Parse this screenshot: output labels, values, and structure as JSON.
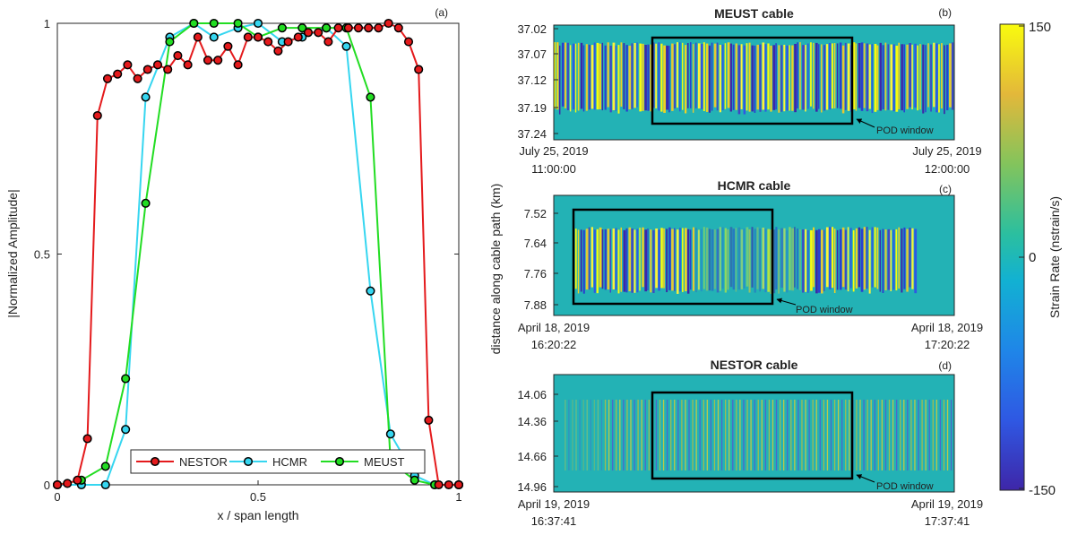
{
  "chart_data": [
    {
      "type": "line",
      "panel_label": "(a)",
      "xlabel": "x / span length",
      "ylabel": "|Normalized Amplitude|",
      "xlim": [
        0,
        1
      ],
      "ylim": [
        0,
        1
      ],
      "xticks": [
        "0",
        "0.5",
        "1"
      ],
      "yticks": [
        "0",
        "0.5",
        "1"
      ],
      "legend": "bottom-center",
      "series": [
        {
          "name": "NESTOR",
          "color": "#e41a1c",
          "x": [
            0,
            0.025,
            0.05,
            0.075,
            0.1,
            0.125,
            0.15,
            0.175,
            0.2,
            0.225,
            0.25,
            0.275,
            0.3,
            0.325,
            0.35,
            0.375,
            0.4,
            0.425,
            0.45,
            0.475,
            0.5,
            0.525,
            0.55,
            0.575,
            0.6,
            0.625,
            0.65,
            0.675,
            0.7,
            0.725,
            0.75,
            0.775,
            0.8,
            0.825,
            0.85,
            0.875,
            0.9,
            0.925,
            0.95,
            0.975,
            1
          ],
          "y": [
            0,
            0.003,
            0.01,
            0.1,
            0.8,
            0.88,
            0.89,
            0.91,
            0.88,
            0.9,
            0.91,
            0.9,
            0.93,
            0.91,
            0.97,
            0.92,
            0.92,
            0.95,
            0.91,
            0.97,
            0.97,
            0.96,
            0.94,
            0.96,
            0.97,
            0.98,
            0.98,
            0.96,
            0.99,
            0.99,
            0.99,
            0.99,
            0.99,
            1.0,
            0.99,
            0.96,
            0.9,
            0.14,
            0.0,
            0.0,
            0.0
          ]
        },
        {
          "name": "HCMR",
          "color": "#36d6f0",
          "x": [
            0,
            0.06,
            0.12,
            0.17,
            0.22,
            0.28,
            0.34,
            0.39,
            0.45,
            0.5,
            0.56,
            0.61,
            0.67,
            0.72,
            0.78,
            0.83,
            0.89,
            0.94,
            1
          ],
          "y": [
            0,
            0.0,
            0.0,
            0.12,
            0.84,
            0.97,
            1.0,
            0.97,
            0.99,
            1.0,
            0.96,
            0.97,
            0.99,
            0.95,
            0.42,
            0.11,
            0.02,
            0.0,
            0.0
          ]
        },
        {
          "name": "MEUST",
          "color": "#22dd22",
          "x": [
            0,
            0.06,
            0.12,
            0.17,
            0.22,
            0.28,
            0.34,
            0.39,
            0.45,
            0.5,
            0.56,
            0.61,
            0.67,
            0.72,
            0.78,
            0.83,
            0.89,
            0.94,
            1
          ],
          "y": [
            0,
            0.01,
            0.04,
            0.23,
            0.61,
            0.96,
            1.0,
            1.0,
            1.0,
            0.97,
            0.99,
            0.99,
            0.99,
            0.99,
            0.84,
            0.05,
            0.01,
            0.0,
            0.0
          ]
        }
      ]
    },
    {
      "type": "heatmap",
      "title": "MEUST cable",
      "panel_label": "(b)",
      "yticks": [
        "37.02",
        "37.07",
        "37.12",
        "37.19",
        "37.24"
      ],
      "x_start": "July 25, 2019 11:00:00",
      "x_start_date": "July 25, 2019",
      "x_start_time": "11:00:00",
      "x_end_date": "July 25, 2019",
      "x_end_time": "12:00:00",
      "annotation": "POD window",
      "pod_window": {
        "x_from_frac": 0.24,
        "x_to_frac": 0.74,
        "y_from_km": 37.035,
        "y_to_km": 37.215
      }
    },
    {
      "type": "heatmap",
      "title": "HCMR cable",
      "panel_label": "(c)",
      "yticks": [
        "7.52",
        "7.64",
        "7.76",
        "7.88"
      ],
      "x_start_date": "April 18, 2019",
      "x_start_time": "16:20:22",
      "x_end_date": "April 18, 2019",
      "x_end_time": "17:20:22",
      "annotation": "POD window",
      "pod_window": {
        "x_from_frac": 0.05,
        "x_to_frac": 0.54,
        "y_from_km": 7.52,
        "y_to_km": 7.89
      }
    },
    {
      "type": "heatmap",
      "title": "NESTOR cable",
      "panel_label": "(d)",
      "yticks": [
        "14.06",
        "14.36",
        "14.66",
        "14.96"
      ],
      "x_start_date": "April 19, 2019",
      "x_start_time": "16:37:41",
      "x_end_date": "April 19, 2019",
      "x_end_time": "17:37:41",
      "annotation": "POD window",
      "pod_window": {
        "x_from_frac": 0.24,
        "x_to_frac": 0.74,
        "y_from_km": 14.06,
        "y_to_km": 14.83
      }
    }
  ],
  "shared_ylabel": "distance along cable path (km)",
  "colorbar": {
    "label": "Strain Rate (nstrain/s)",
    "max_label": "150",
    "mid_label": "0",
    "min_label": "-150",
    "range": [
      -150,
      150
    ]
  }
}
